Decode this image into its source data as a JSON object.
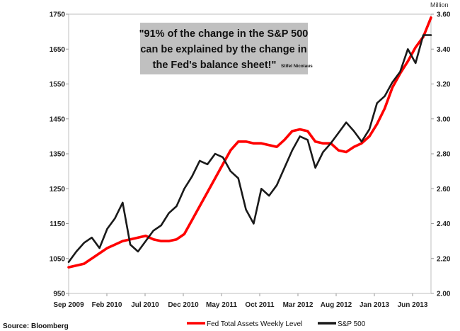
{
  "chart_data": {
    "type": "line",
    "title": "",
    "unit_label": "Million",
    "source": "Source: Bloomberg",
    "annotation": {
      "lines": [
        "\"91% of the change in the S&P 500",
        "can be explained by the change in",
        "the Fed's balance sheet!\""
      ],
      "attribution": "Stifel Nicolaus"
    },
    "x_tick_labels": [
      "Sep 2009",
      "Feb 2010",
      "Jul 2010",
      "Dec 2010",
      "May 2011",
      "Oct 2011",
      "Mar 2012",
      "Aug 2012",
      "Jan 2013",
      "Jun 2013"
    ],
    "x_range": [
      "2009-09",
      "2013-08"
    ],
    "left_axis": {
      "ticks": [
        950,
        1050,
        1150,
        1250,
        1350,
        1450,
        1550,
        1650,
        1750
      ],
      "range": [
        950,
        1750
      ]
    },
    "right_axis": {
      "ticks": [
        "2.00",
        "2.20",
        "2.40",
        "2.60",
        "2.80",
        "3.00",
        "3.20",
        "3.40",
        "3.60"
      ],
      "range": [
        2.0,
        3.6
      ]
    },
    "grid": false,
    "legend_position": "bottom",
    "series": [
      {
        "name": "Fed Total Assets Weekly Level",
        "axis": "right",
        "color": "#ff0000",
        "x": [
          "2009-09",
          "2009-10",
          "2009-11",
          "2009-12",
          "2010-01",
          "2010-02",
          "2010-03",
          "2010-04",
          "2010-05",
          "2010-06",
          "2010-07",
          "2010-08",
          "2010-09",
          "2010-10",
          "2010-11",
          "2010-12",
          "2011-01",
          "2011-02",
          "2011-03",
          "2011-04",
          "2011-05",
          "2011-06",
          "2011-07",
          "2011-08",
          "2011-09",
          "2011-10",
          "2011-11",
          "2011-12",
          "2012-01",
          "2012-02",
          "2012-03",
          "2012-04",
          "2012-05",
          "2012-06",
          "2012-07",
          "2012-08",
          "2012-09",
          "2012-10",
          "2012-11",
          "2012-12",
          "2013-01",
          "2013-02",
          "2013-03",
          "2013-04",
          "2013-05",
          "2013-06",
          "2013-07",
          "2013-08"
        ],
        "y": [
          2.15,
          2.16,
          2.17,
          2.2,
          2.23,
          2.26,
          2.28,
          2.3,
          2.31,
          2.32,
          2.33,
          2.31,
          2.3,
          2.3,
          2.31,
          2.34,
          2.42,
          2.5,
          2.58,
          2.66,
          2.74,
          2.82,
          2.87,
          2.87,
          2.86,
          2.86,
          2.85,
          2.84,
          2.88,
          2.93,
          2.94,
          2.93,
          2.87,
          2.86,
          2.86,
          2.82,
          2.81,
          2.84,
          2.86,
          2.9,
          2.97,
          3.06,
          3.18,
          3.26,
          3.33,
          3.41,
          3.47,
          3.58
        ]
      },
      {
        "name": "S&P 500",
        "axis": "left",
        "color": "#1a1a1a",
        "x": [
          "2009-09",
          "2009-10",
          "2009-11",
          "2009-12",
          "2010-01",
          "2010-02",
          "2010-03",
          "2010-04",
          "2010-05",
          "2010-06",
          "2010-07",
          "2010-08",
          "2010-09",
          "2010-10",
          "2010-11",
          "2010-12",
          "2011-01",
          "2011-02",
          "2011-03",
          "2011-04",
          "2011-05",
          "2011-06",
          "2011-07",
          "2011-08",
          "2011-09",
          "2011-10",
          "2011-11",
          "2011-12",
          "2012-01",
          "2012-02",
          "2012-03",
          "2012-04",
          "2012-05",
          "2012-06",
          "2012-07",
          "2012-08",
          "2012-09",
          "2012-10",
          "2012-11",
          "2012-12",
          "2013-01",
          "2013-02",
          "2013-03",
          "2013-04",
          "2013-05",
          "2013-06",
          "2013-07",
          "2013-08"
        ],
        "y": [
          1040,
          1070,
          1095,
          1110,
          1080,
          1135,
          1165,
          1210,
          1090,
          1070,
          1100,
          1130,
          1145,
          1180,
          1200,
          1250,
          1285,
          1330,
          1320,
          1350,
          1340,
          1300,
          1280,
          1190,
          1150,
          1250,
          1230,
          1260,
          1310,
          1360,
          1400,
          1390,
          1310,
          1355,
          1380,
          1410,
          1440,
          1415,
          1385,
          1420,
          1495,
          1515,
          1555,
          1585,
          1650,
          1610,
          1690,
          1690
        ]
      }
    ]
  }
}
